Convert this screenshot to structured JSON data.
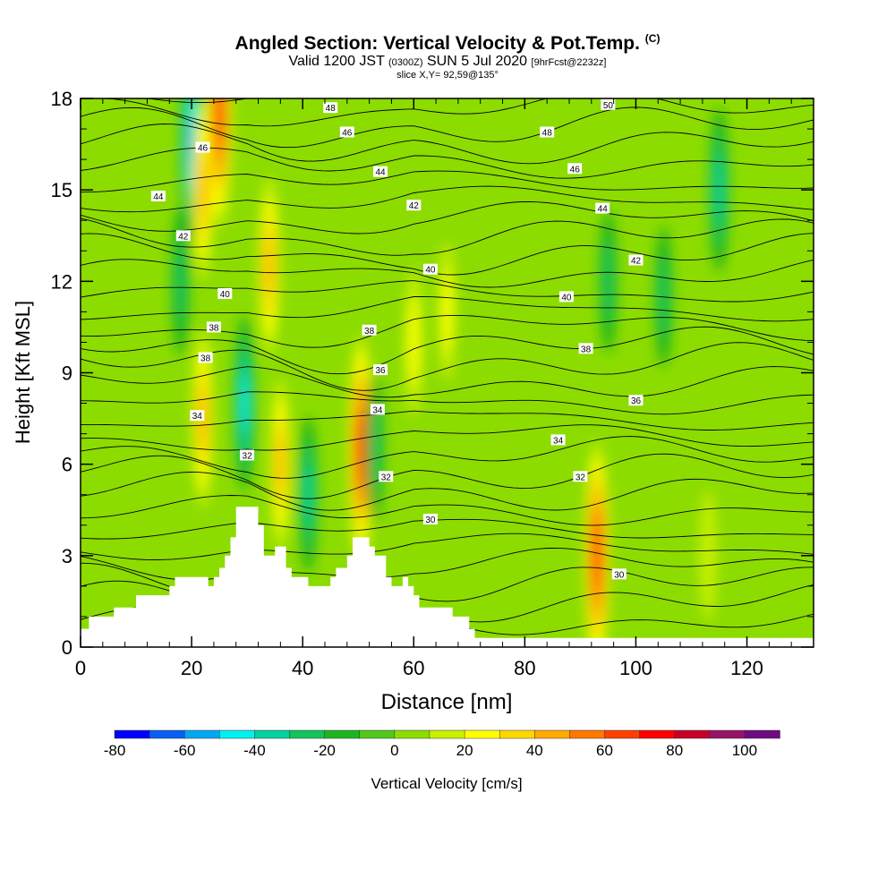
{
  "header": {
    "title": "Angled Section: Vertical Velocity & Pot.Temp.",
    "title_tag": "(C)",
    "valid_prefix": "Valid 1200 JST",
    "valid_utc": "(0300Z)",
    "valid_date": "SUN 5 Jul 2020",
    "forecast": "[9hrFcst@2232z]",
    "slice": "slice X,Y= 92,59@135°"
  },
  "chart_data": {
    "type": "heatmap",
    "xlabel": "Distance [nm]",
    "ylabel": "Height [Kft MSL]",
    "xlim": [
      0,
      132
    ],
    "ylim": [
      0,
      18
    ],
    "xticks": [
      0,
      20,
      40,
      60,
      80,
      100,
      120
    ],
    "yticks": [
      0,
      3,
      6,
      9,
      12,
      15,
      18
    ],
    "colorbar": {
      "label": "Vertical Velocity [cm/s]",
      "ticks": [
        -80,
        -60,
        -40,
        -20,
        0,
        20,
        40,
        60,
        80,
        100
      ],
      "levels": [
        -80,
        -70,
        -60,
        -50,
        -40,
        -30,
        -20,
        -10,
        0,
        10,
        20,
        30,
        40,
        50,
        60,
        70,
        80,
        90,
        100
      ],
      "colors": [
        "#0000ff",
        "#0a5ff5",
        "#00a8f0",
        "#00f0f0",
        "#00d2a0",
        "#14c35a",
        "#1eb41e",
        "#50c81e",
        "#8cdc00",
        "#c8f000",
        "#ffff00",
        "#ffd700",
        "#ffaa00",
        "#ff7800",
        "#ff4000",
        "#ff0000",
        "#c80028",
        "#961464",
        "#6e0a82"
      ]
    },
    "velocity_features": [
      {
        "x": 25,
        "y": 17.5,
        "value": 75
      },
      {
        "x": 20,
        "y": 16.5,
        "value": -55
      },
      {
        "x": 22,
        "y": 15,
        "value": 45
      },
      {
        "x": 18,
        "y": 12,
        "value": -25
      },
      {
        "x": 22,
        "y": 7.5,
        "value": 45
      },
      {
        "x": 29.5,
        "y": 8,
        "value": -42
      },
      {
        "x": 34,
        "y": 12.5,
        "value": 45
      },
      {
        "x": 36,
        "y": 6,
        "value": 40
      },
      {
        "x": 41,
        "y": 5,
        "value": -30
      },
      {
        "x": 50.5,
        "y": 6.5,
        "value": 75
      },
      {
        "x": 53,
        "y": 6.5,
        "value": -25
      },
      {
        "x": 60,
        "y": 10,
        "value": 25
      },
      {
        "x": 66,
        "y": 11,
        "value": 20
      },
      {
        "x": 93,
        "y": 3,
        "value": 75
      },
      {
        "x": 95,
        "y": 12,
        "value": -22
      },
      {
        "x": 105,
        "y": 11.5,
        "value": -20
      },
      {
        "x": 115,
        "y": 15,
        "value": -35
      },
      {
        "x": 113,
        "y": 3,
        "value": 15
      }
    ],
    "theta_labels": [
      {
        "value": "48",
        "x": 45,
        "y": 17.7
      },
      {
        "value": "50",
        "x": 95,
        "y": 17.8
      },
      {
        "value": "48",
        "x": 84,
        "y": 16.9
      },
      {
        "value": "46",
        "x": 48,
        "y": 16.9
      },
      {
        "value": "46",
        "x": 22,
        "y": 16.4
      },
      {
        "value": "46",
        "x": 89,
        "y": 15.7
      },
      {
        "value": "44",
        "x": 54,
        "y": 15.6
      },
      {
        "value": "44",
        "x": 14,
        "y": 14.8
      },
      {
        "value": "44",
        "x": 94,
        "y": 14.4
      },
      {
        "value": "42",
        "x": 60,
        "y": 14.5
      },
      {
        "value": "42",
        "x": 18.5,
        "y": 13.5
      },
      {
        "value": "42",
        "x": 100,
        "y": 12.7
      },
      {
        "value": "40",
        "x": 63,
        "y": 12.4
      },
      {
        "value": "40",
        "x": 26,
        "y": 11.6
      },
      {
        "value": "40",
        "x": 87.5,
        "y": 11.5
      },
      {
        "value": "38",
        "x": 24,
        "y": 10.5
      },
      {
        "value": "38",
        "x": 52,
        "y": 10.4
      },
      {
        "value": "38",
        "x": 91,
        "y": 9.8
      },
      {
        "value": "38",
        "x": 22.5,
        "y": 9.5
      },
      {
        "value": "36",
        "x": 54,
        "y": 9.1
      },
      {
        "value": "36",
        "x": 100,
        "y": 8.1
      },
      {
        "value": "34",
        "x": 21,
        "y": 7.6
      },
      {
        "value": "34",
        "x": 53.5,
        "y": 7.8
      },
      {
        "value": "34",
        "x": 86,
        "y": 6.8
      },
      {
        "value": "32",
        "x": 30,
        "y": 6.3
      },
      {
        "value": "32",
        "x": 55,
        "y": 5.6
      },
      {
        "value": "32",
        "x": 90,
        "y": 5.6
      },
      {
        "value": "30",
        "x": 63,
        "y": 4.2
      },
      {
        "value": "30",
        "x": 97,
        "y": 2.4
      }
    ],
    "terrain_kft": [
      [
        0,
        0.6
      ],
      [
        1.5,
        1.0
      ],
      [
        6,
        1.3
      ],
      [
        10,
        1.7
      ],
      [
        15,
        1.7
      ],
      [
        16,
        2.0
      ],
      [
        17,
        2.3
      ],
      [
        21.5,
        2.3
      ],
      [
        23,
        2.0
      ],
      [
        24,
        2.3
      ],
      [
        25,
        2.6
      ],
      [
        26,
        3.0
      ],
      [
        27,
        3.6
      ],
      [
        28,
        4.6
      ],
      [
        31,
        4.6
      ],
      [
        32,
        4.0
      ],
      [
        33,
        3.0
      ],
      [
        34,
        3.0
      ],
      [
        35,
        3.3
      ],
      [
        36,
        3.3
      ],
      [
        37,
        2.6
      ],
      [
        38,
        2.3
      ],
      [
        40,
        2.3
      ],
      [
        41,
        2.0
      ],
      [
        44,
        2.0
      ],
      [
        45,
        2.3
      ],
      [
        46,
        2.6
      ],
      [
        47,
        2.6
      ],
      [
        48,
        3.0
      ],
      [
        49,
        3.6
      ],
      [
        51,
        3.6
      ],
      [
        52,
        3.3
      ],
      [
        53,
        3.0
      ],
      [
        55,
        2.3
      ],
      [
        56,
        2.0
      ],
      [
        58,
        2.3
      ],
      [
        59,
        2.0
      ],
      [
        60,
        1.7
      ],
      [
        61,
        1.3
      ],
      [
        66,
        1.3
      ],
      [
        67,
        1.0
      ],
      [
        70,
        0.6
      ],
      [
        71,
        0.3
      ],
      [
        73,
        0.3
      ]
    ]
  }
}
